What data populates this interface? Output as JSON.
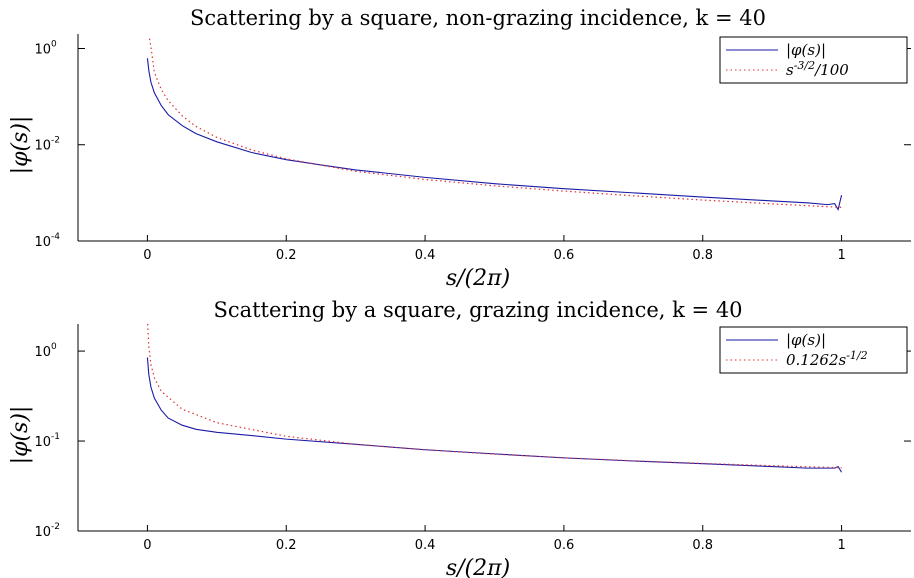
{
  "chart_data": [
    {
      "type": "line",
      "title": "Scattering by a square, non-grazing incidence, k = 40",
      "xlabel": "s/(2π)",
      "ylabel": "|φ(s)|",
      "xlim": [
        -0.1,
        1.1
      ],
      "ylim": [
        0.0001,
        2
      ],
      "yscale": "log",
      "xticks": [
        "0",
        "0.2",
        "0.4",
        "0.6",
        "0.8",
        "1"
      ],
      "yticks": [
        {
          "base": "10",
          "exp": "0"
        },
        {
          "base": "10",
          "exp": "-2"
        },
        {
          "base": "10",
          "exp": "-4"
        }
      ],
      "legend_position": "top-right",
      "series": [
        {
          "name": "|φ(s)|",
          "color": "#1a1aa6",
          "style": "solid",
          "x": [
            0.0,
            0.002,
            0.005,
            0.01,
            0.02,
            0.03,
            0.05,
            0.07,
            0.1,
            0.15,
            0.2,
            0.25,
            0.3,
            0.4,
            0.5,
            0.6,
            0.7,
            0.8,
            0.9,
            0.95,
            0.98,
            0.99,
            0.995,
            1.0
          ],
          "y": [
            0.63,
            0.35,
            0.2,
            0.12,
            0.065,
            0.042,
            0.025,
            0.017,
            0.0115,
            0.0069,
            0.0049,
            0.0038,
            0.003,
            0.0021,
            0.00155,
            0.00122,
            0.001,
            0.00082,
            0.00068,
            0.00062,
            0.00057,
            0.0006,
            0.00045,
            0.0009
          ]
        },
        {
          "name": "s^{-3/2}/100",
          "color": "#e03030",
          "style": "dotted",
          "x": [
            0.003,
            0.005,
            0.01,
            0.02,
            0.03,
            0.05,
            0.07,
            0.1,
            0.15,
            0.2,
            0.3,
            0.4,
            0.5,
            0.6,
            0.7,
            0.8,
            0.9,
            1.0
          ],
          "y": [
            1.6,
            1.1,
            0.32,
            0.14,
            0.082,
            0.04,
            0.024,
            0.0142,
            0.0078,
            0.0051,
            0.0028,
            0.0019,
            0.0014,
            0.00109,
            0.00087,
            0.00071,
            0.00059,
            0.0005
          ]
        }
      ]
    },
    {
      "type": "line",
      "title": "Scattering by a square, grazing incidence, k = 40",
      "xlabel": "s/(2π)",
      "ylabel": "|φ(s)|",
      "xlim": [
        -0.1,
        1.1
      ],
      "ylim": [
        0.01,
        2
      ],
      "yscale": "log",
      "xticks": [
        "0",
        "0.2",
        "0.4",
        "0.6",
        "0.8",
        "1"
      ],
      "yticks": [
        {
          "base": "10",
          "exp": "0"
        },
        {
          "base": "10",
          "exp": "-1"
        },
        {
          "base": "10",
          "exp": "-2"
        }
      ],
      "legend_position": "top-right",
      "series": [
        {
          "name": "|φ(s)|",
          "color": "#1a1aa6",
          "style": "solid",
          "x": [
            0.0,
            0.002,
            0.005,
            0.01,
            0.02,
            0.03,
            0.05,
            0.07,
            0.1,
            0.15,
            0.2,
            0.3,
            0.4,
            0.5,
            0.6,
            0.7,
            0.8,
            0.9,
            0.95,
            0.99,
            0.995,
            1.0
          ],
          "y": [
            0.85,
            0.55,
            0.4,
            0.3,
            0.22,
            0.18,
            0.15,
            0.135,
            0.125,
            0.115,
            0.105,
            0.092,
            0.08,
            0.072,
            0.065,
            0.06,
            0.056,
            0.052,
            0.05,
            0.05,
            0.052,
            0.045
          ]
        },
        {
          "name": "0.1262s^{-1/2}",
          "color": "#e03030",
          "style": "dotted",
          "x": [
            0.0004,
            0.001,
            0.002,
            0.005,
            0.01,
            0.02,
            0.05,
            0.1,
            0.2,
            0.3,
            0.4,
            0.5,
            0.6,
            0.7,
            0.8,
            0.9,
            1.0
          ],
          "y": [
            2.5,
            1.6,
            1.13,
            0.71,
            0.505,
            0.357,
            0.226,
            0.16,
            0.113,
            0.092,
            0.08,
            0.0714,
            0.0652,
            0.0603,
            0.0564,
            0.0532,
            0.0505
          ]
        }
      ]
    }
  ]
}
